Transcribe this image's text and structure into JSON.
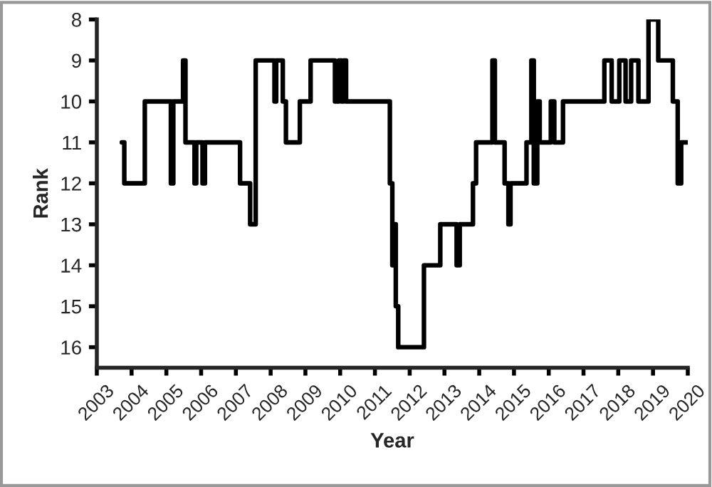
{
  "chart_data": {
    "type": "step",
    "xlabel": "Year",
    "ylabel": "Rank",
    "xlim": [
      2003,
      2020
    ],
    "xticks": [
      2003,
      2004,
      2005,
      2006,
      2007,
      2008,
      2009,
      2010,
      2011,
      2012,
      2013,
      2014,
      2015,
      2016,
      2017,
      2018,
      2019,
      2020
    ],
    "ylim": [
      16.5,
      8
    ],
    "yticks": [
      8,
      9,
      10,
      11,
      12,
      13,
      14,
      15,
      16
    ],
    "grid": false,
    "line_style": "solid",
    "marker": "none",
    "series": [
      {
        "color": "#000000",
        "x": [
          2003.72,
          2003.79,
          2004.38,
          2005.13,
          2005.2,
          2005.48,
          2005.55,
          2005.81,
          2005.86,
          2006.04,
          2006.11,
          2007.12,
          2007.41,
          2007.57,
          2008.11,
          2008.16,
          2008.35,
          2008.44,
          2008.84,
          2009.15,
          2009.85,
          2009.96,
          2010.04,
          2010.1,
          2010.17,
          2011.43,
          2011.5,
          2011.57,
          2011.6,
          2011.67,
          2012.41,
          2012.88,
          2013.35,
          2013.44,
          2013.82,
          2013.91,
          2014.38,
          2014.45,
          2014.73,
          2014.84,
          2014.9,
          2015.36,
          2015.5,
          2015.57,
          2015.67,
          2015.74,
          2016.06,
          2016.16,
          2016.41,
          2017.6,
          2017.81,
          2018.03,
          2018.21,
          2018.37,
          2018.58,
          2018.87,
          2019.15,
          2019.57,
          2019.71,
          2019.81,
          2019.99
        ],
        "values": [
          11,
          12,
          10,
          12,
          10,
          9,
          11,
          12,
          11,
          12,
          11,
          12,
          13,
          9,
          10,
          9,
          10,
          11,
          10,
          9,
          10,
          9,
          10,
          9,
          10,
          12,
          14,
          13,
          15,
          16,
          14,
          13,
          14,
          13,
          12,
          11,
          9,
          11,
          12,
          13,
          12,
          11,
          9,
          12,
          10,
          11,
          10,
          11,
          10,
          9,
          10,
          9,
          10,
          9,
          10,
          8,
          9,
          10,
          12,
          11,
          11
        ]
      }
    ]
  }
}
